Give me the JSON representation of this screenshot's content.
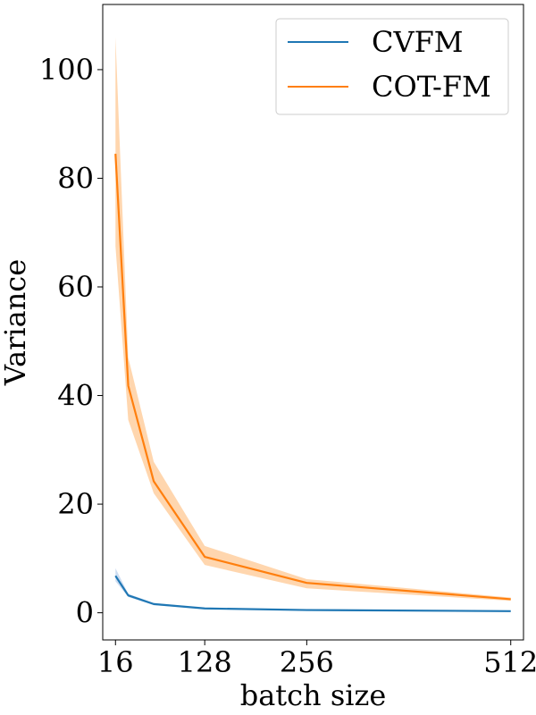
{
  "chart_data": {
    "type": "line",
    "title": "",
    "xlabel": "batch size",
    "ylabel": "Variance",
    "xlim": [
      0,
      528
    ],
    "ylim": [
      -5,
      112
    ],
    "xticks": [
      16,
      128,
      256,
      512
    ],
    "yticks": [
      0,
      20,
      40,
      60,
      80,
      100
    ],
    "grid": false,
    "legend_position": "top-right",
    "series": [
      {
        "name": "CVFM",
        "color": "#1f77b4",
        "band_color": "#aec7e8",
        "x": [
          16,
          32,
          64,
          128,
          256,
          512
        ],
        "values": [
          6.8,
          3.2,
          1.6,
          0.8,
          0.5,
          0.3
        ],
        "lower": [
          5.8,
          2.9,
          1.4,
          0.7,
          0.45,
          0.25
        ],
        "upper": [
          8.2,
          3.5,
          1.8,
          0.9,
          0.55,
          0.35
        ]
      },
      {
        "name": "COT-FM",
        "color": "#ff7f0e",
        "band_color": "#ffbb78",
        "x": [
          16,
          32,
          64,
          128,
          256,
          512
        ],
        "values": [
          84.5,
          41.8,
          24.2,
          10.3,
          5.5,
          2.5
        ],
        "lower": [
          67.5,
          35.5,
          22.0,
          8.8,
          4.5,
          2.2
        ],
        "upper": [
          106.0,
          47.0,
          27.8,
          12.3,
          6.2,
          2.8
        ]
      }
    ]
  }
}
